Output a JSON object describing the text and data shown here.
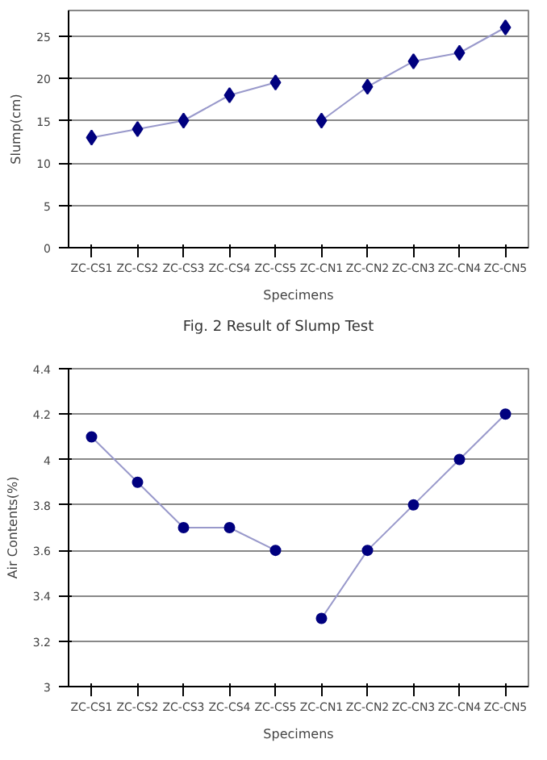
{
  "chart_data": [
    {
      "type": "line",
      "xlabel": "Specimens",
      "ylabel": "Slump(cm)",
      "categories": [
        "ZC-CS1",
        "ZC-CS2",
        "ZC-CS3",
        "ZC-CS4",
        "ZC-CS5",
        "ZC-CN1",
        "ZC-CN2",
        "ZC-CN3",
        "ZC-CN4",
        "ZC-CN5"
      ],
      "series": [
        {
          "color": "#00007f",
          "values": [
            13,
            14,
            15,
            18,
            19.5,
            null,
            null,
            null,
            null,
            null
          ]
        },
        {
          "color": "#00007f",
          "values": [
            null,
            null,
            null,
            null,
            null,
            15,
            19,
            22,
            23,
            26
          ]
        }
      ],
      "ylim": [
        0,
        28
      ],
      "yticks": [
        0,
        5,
        10,
        15,
        20,
        25
      ],
      "grid": "y",
      "marker": "diamond",
      "annotations": [
        "Fig. 2 Result of Slump Test"
      ]
    },
    {
      "type": "line",
      "xlabel": "Specimens",
      "ylabel": "Air Contents(%)",
      "categories": [
        "ZC-CS1",
        "ZC-CS2",
        "ZC-CS3",
        "ZC-CS4",
        "ZC-CS5",
        "ZC-CN1",
        "ZC-CN2",
        "ZC-CN3",
        "ZC-CN4",
        "ZC-CN5"
      ],
      "series": [
        {
          "color": "#00007f",
          "values": [
            4.1,
            3.9,
            3.7,
            3.7,
            3.6,
            null,
            null,
            null,
            null,
            null
          ]
        },
        {
          "color": "#00007f",
          "values": [
            null,
            null,
            null,
            null,
            null,
            3.3,
            3.6,
            3.8,
            4.0,
            4.2
          ]
        }
      ],
      "ylim": [
        3,
        4.4
      ],
      "yticks": [
        3,
        3.2,
        3.4,
        3.6,
        3.8,
        4,
        4.2,
        4.4
      ],
      "grid": "y",
      "marker": "circle"
    }
  ]
}
